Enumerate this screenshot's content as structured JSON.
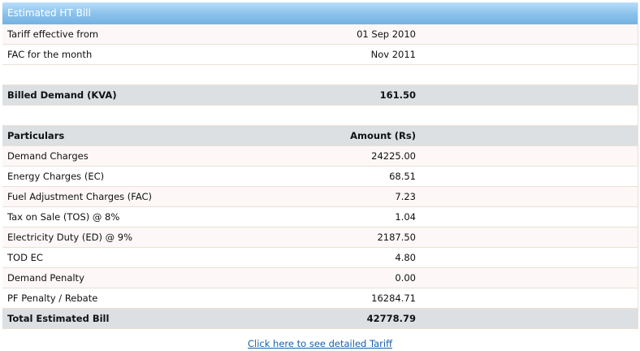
{
  "title": "Estimated HT Bill",
  "info_rows": [
    {
      "label": "Tariff effective from",
      "value": "01 Sep 2010"
    },
    {
      "label": "FAC for the month",
      "value": "Nov 2011"
    }
  ],
  "billed_demand": {
    "label": "Billed Demand (KVA)",
    "value": "161.50"
  },
  "particulars_header": {
    "label": "Particulars",
    "value": "Amount (Rs)"
  },
  "charges": [
    {
      "label": "Demand Charges",
      "value": "24225.00"
    },
    {
      "label": "Energy Charges (EC)",
      "value": "68.51"
    },
    {
      "label": "Fuel Adjustment Charges (FAC)",
      "value": "7.23"
    },
    {
      "label": "Tax on Sale (TOS) @ 8%",
      "value": "1.04"
    },
    {
      "label": "Electricity Duty (ED) @ 9%",
      "value": "2187.50"
    },
    {
      "label": "TOD EC",
      "value": "4.80"
    },
    {
      "label": "Demand Penalty",
      "value": "0.00"
    },
    {
      "label": "PF Penalty / Rebate",
      "value": "16284.71"
    }
  ],
  "total": {
    "label": "Total Estimated Bill",
    "value": "42778.79"
  },
  "link_text": "Click here to see detailed Tariff"
}
